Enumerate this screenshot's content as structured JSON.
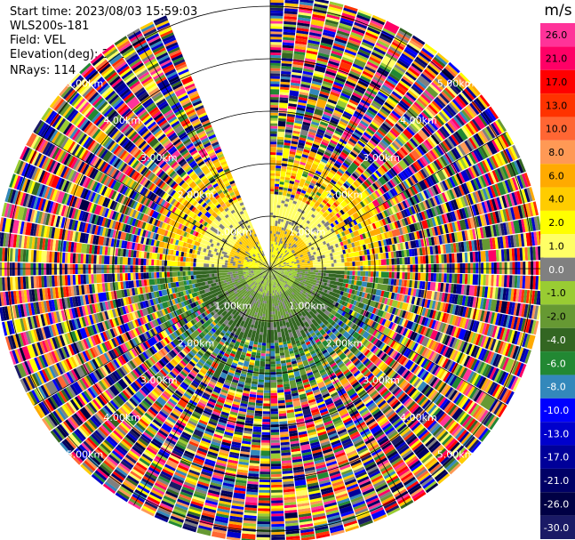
{
  "header": {
    "start_time": "Start time: 2023/08/03 15:59:03",
    "instrument": "WLS200s-181",
    "field": "Field: VEL",
    "elevation": "Elevation(deg): 35.30",
    "nrays": "NRays: 114"
  },
  "chart_data": {
    "type": "heatmap",
    "projection": "polar PPI",
    "field": "VEL",
    "units": "m/s",
    "range_ring_labels": [
      "1.00km",
      "2.00km",
      "3.00km",
      "4.00km",
      "5.00km"
    ],
    "range_rings_km": [
      1,
      2,
      3,
      4,
      5
    ],
    "max_range_km": 5.2,
    "missing_sector_deg": [
      337,
      359
    ],
    "colorbar": {
      "label": "m/s",
      "tick_labels": [
        "26.0",
        "21.0",
        "17.0",
        "13.0",
        "10.0",
        "8.0",
        "6.0",
        "4.0",
        "2.0",
        "1.0",
        "0.0",
        "-1.0",
        "-2.0",
        "-4.0",
        "-6.0",
        "-8.0",
        "-10.0",
        "-13.0",
        "-17.0",
        "-21.0",
        "-26.0",
        "-30.0"
      ],
      "colors": [
        "#ff3399",
        "#ff0066",
        "#ff0000",
        "#ff3300",
        "#ff6633",
        "#ff9955",
        "#ffaa00",
        "#ffcc00",
        "#ffff00",
        "#ffff66",
        "#808080",
        "#99cc33",
        "#669933",
        "#336622",
        "#228833",
        "#3388bb",
        "#0000ff",
        "#0000cc",
        "#000099",
        "#000066",
        "#000044",
        "#1a1a66"
      ]
    }
  }
}
